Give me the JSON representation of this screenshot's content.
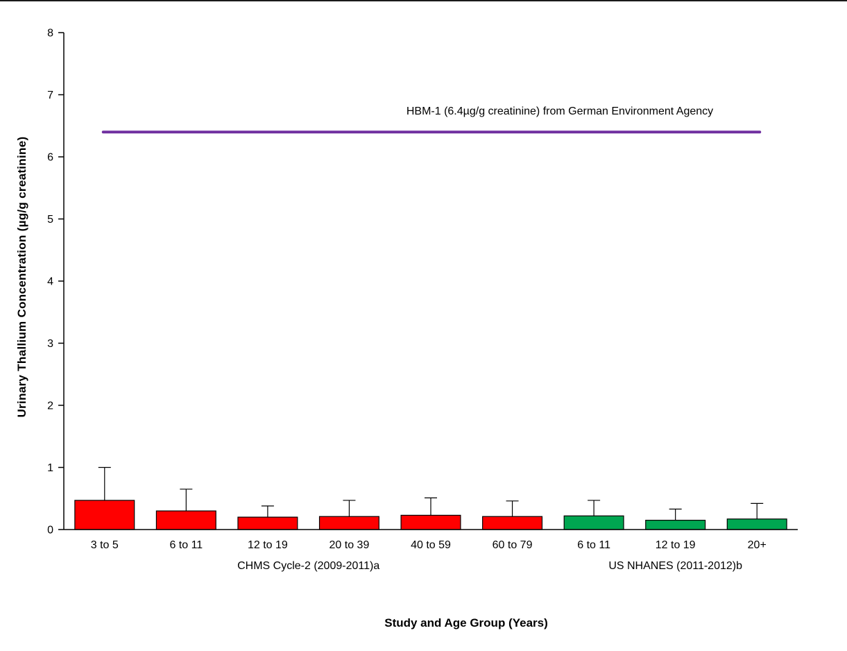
{
  "chart_data": {
    "type": "bar",
    "title": "",
    "ylabel": "Urinary Thallium Concentration (µg/g creatinine)",
    "xlabel": "Study and Age Group (Years)",
    "ylim": [
      0,
      8
    ],
    "yticks": [
      0,
      1,
      2,
      3,
      4,
      5,
      6,
      7,
      8
    ],
    "categories": [
      "3 to 5",
      "6 to 11",
      "12 to 19",
      "20 to 39",
      "40 to 59",
      "60 to 79",
      "6 to 11",
      "12 to 19",
      "20+"
    ],
    "values": [
      0.47,
      0.3,
      0.2,
      0.21,
      0.23,
      0.21,
      0.22,
      0.15,
      0.17
    ],
    "error_upper": [
      1.0,
      0.65,
      0.38,
      0.47,
      0.51,
      0.46,
      0.47,
      0.33,
      0.42
    ],
    "bar_colors": [
      "#FF0000",
      "#FF0000",
      "#FF0000",
      "#FF0000",
      "#FF0000",
      "#FF0000",
      "#00A651",
      "#00A651",
      "#00A651"
    ],
    "bar_edge_color": "#000000",
    "groups": [
      {
        "label": "CHMS Cycle-2 (2009-2011)a",
        "color": "#FF0000",
        "start": 0,
        "end": 5
      },
      {
        "label": "US NHANES (2011-2012)b",
        "color": "#00A651",
        "start": 6,
        "end": 8
      }
    ],
    "reference_line": {
      "value": 6.4,
      "label": "HBM-1 (6.4µg/g creatinine) from German Environment Agency",
      "color": "#7030A0"
    },
    "grid": false,
    "legend": "none"
  }
}
